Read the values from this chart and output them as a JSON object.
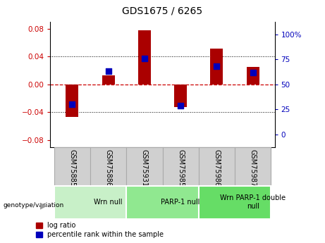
{
  "title": "GDS1675 / 6265",
  "samples": [
    "GSM75885",
    "GSM75886",
    "GSM75931",
    "GSM75985",
    "GSM75986",
    "GSM75987"
  ],
  "log_ratios": [
    -0.047,
    0.013,
    0.078,
    -0.033,
    0.052,
    0.025
  ],
  "percentile_ranks": [
    30,
    63,
    76,
    29,
    68,
    62
  ],
  "groups": [
    {
      "label": "Wrn null",
      "start": 0,
      "end": 2,
      "color": "#c8f0c8"
    },
    {
      "label": "PARP-1 null",
      "start": 2,
      "end": 4,
      "color": "#90e890"
    },
    {
      "label": "Wrn PARP-1 double\nnull",
      "start": 4,
      "end": 6,
      "color": "#66dd66"
    }
  ],
  "ylim_left": [
    -0.09,
    0.09
  ],
  "ylim_right": [
    -12.5,
    112.5
  ],
  "yticks_left": [
    -0.08,
    -0.04,
    0,
    0.04,
    0.08
  ],
  "yticks_right": [
    0,
    25,
    50,
    75,
    100
  ],
  "ytick_right_labels": [
    "0",
    "25",
    "50",
    "75",
    "100%"
  ],
  "bar_color": "#aa0000",
  "dot_color": "#0000bb",
  "zero_line_color": "#cc0000",
  "bar_width": 0.35,
  "dot_size": 28,
  "sample_box_color": "#d0d0d0",
  "sample_box_edge": "#aaaaaa"
}
